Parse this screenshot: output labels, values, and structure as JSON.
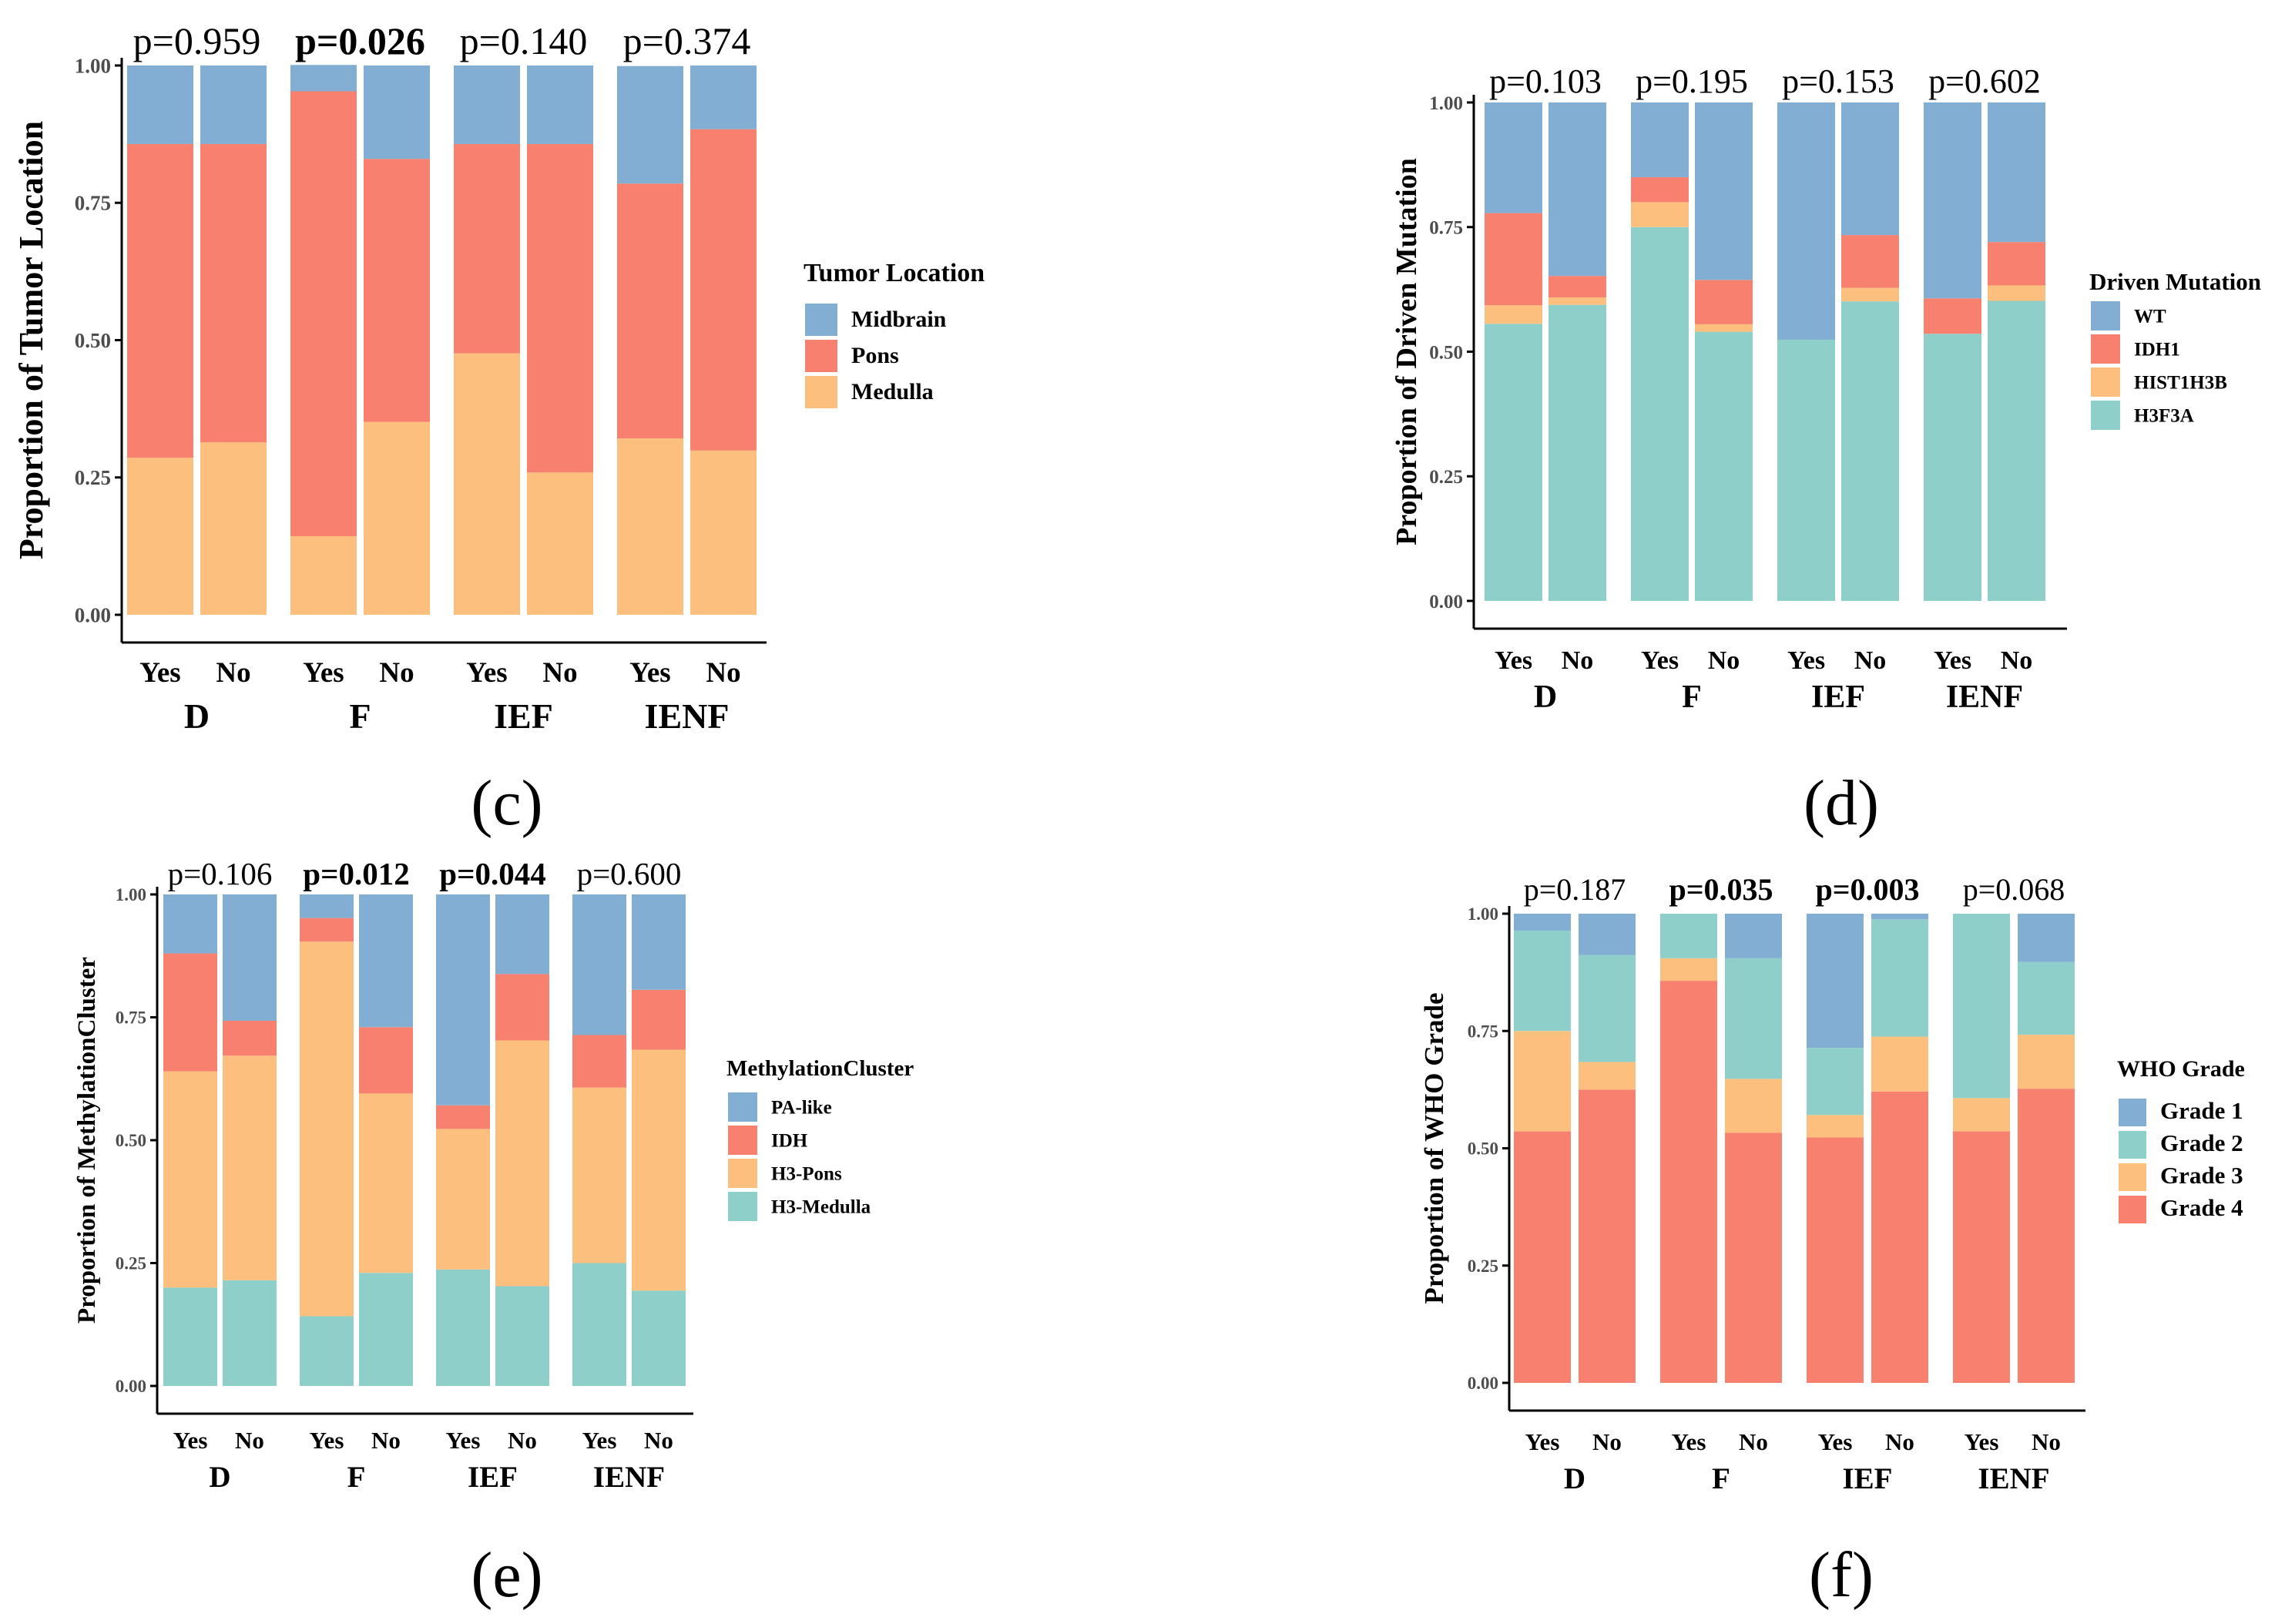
{
  "figure": {
    "panel_labels": [
      "(c)",
      "(d)",
      "(e)",
      "(f)"
    ]
  },
  "chart_data": [
    {
      "type": "bar",
      "stacked": true,
      "panel": "(c)",
      "ylabel": "Proportion of Tumor Location",
      "ylim": [
        0,
        1
      ],
      "yticks": [
        "0.00",
        "0.25",
        "0.50",
        "0.75",
        "1.00"
      ],
      "groups": [
        "D",
        "F",
        "IEF",
        "IENF"
      ],
      "bar_labels": [
        "Yes",
        "No"
      ],
      "p_values": [
        {
          "text": "p=0.959",
          "bold": false
        },
        {
          "text": "p=0.026",
          "bold": true
        },
        {
          "text": "p=0.140",
          "bold": false
        },
        {
          "text": "p=0.374",
          "bold": false
        }
      ],
      "legend_title": "Tumor Location",
      "series": [
        {
          "name": "Midbrain",
          "color": "#82AED3",
          "values": [
            0.143,
            0.143,
            0.048,
            0.17,
            0.143,
            0.143,
            0.214,
            0.116
          ]
        },
        {
          "name": "Pons",
          "color": "#F8806F",
          "values": [
            0.571,
            0.543,
            0.81,
            0.479,
            0.381,
            0.598,
            0.464,
            0.585
          ]
        },
        {
          "name": "Medulla",
          "color": "#FDBF7E",
          "values": [
            0.286,
            0.314,
            0.143,
            0.351,
            0.476,
            0.259,
            0.321,
            0.299
          ]
        }
      ]
    },
    {
      "type": "bar",
      "stacked": true,
      "panel": "(d)",
      "ylabel": "Proportion of Driven Mutation",
      "ylim": [
        0,
        1
      ],
      "yticks": [
        "0.00",
        "0.25",
        "0.50",
        "0.75",
        "1.00"
      ],
      "groups": [
        "D",
        "F",
        "IEF",
        "IENF"
      ],
      "bar_labels": [
        "Yes",
        "No"
      ],
      "p_values": [
        {
          "text": "p=0.103",
          "bold": false
        },
        {
          "text": "p=0.195",
          "bold": false
        },
        {
          "text": "p=0.153",
          "bold": false
        },
        {
          "text": "p=0.602",
          "bold": false
        }
      ],
      "legend_title": "Driven Mutation",
      "series": [
        {
          "name": "WT",
          "color": "#82AED3",
          "values": [
            0.222,
            0.348,
            0.15,
            0.356,
            0.476,
            0.266,
            0.393,
            0.28
          ]
        },
        {
          "name": "IDH1",
          "color": "#F8806F",
          "values": [
            0.185,
            0.043,
            0.05,
            0.089,
            0.0,
            0.106,
            0.071,
            0.087
          ]
        },
        {
          "name": "HIST1H3B",
          "color": "#FDBF7E",
          "values": [
            0.037,
            0.015,
            0.05,
            0.015,
            0.0,
            0.027,
            0.0,
            0.031
          ]
        },
        {
          "name": "H3F3A",
          "color": "#8ECFC9",
          "values": [
            0.556,
            0.594,
            0.75,
            0.54,
            0.524,
            0.601,
            0.536,
            0.602
          ]
        }
      ]
    },
    {
      "type": "bar",
      "stacked": true,
      "panel": "(e)",
      "ylabel": "Proportion of MethylationCluster",
      "ylim": [
        0,
        1
      ],
      "yticks": [
        "0.00",
        "0.25",
        "0.50",
        "0.75",
        "1.00"
      ],
      "groups": [
        "D",
        "F",
        "IEF",
        "IENF"
      ],
      "bar_labels": [
        "Yes",
        "No"
      ],
      "p_values": [
        {
          "text": "p=0.106",
          "bold": false
        },
        {
          "text": "p=0.012",
          "bold": true
        },
        {
          "text": "p=0.044",
          "bold": true
        },
        {
          "text": "p=0.600",
          "bold": false
        }
      ],
      "legend_title": "MethylationCluster",
      "series": [
        {
          "name": "PA-like",
          "color": "#82AED3",
          "values": [
            0.12,
            0.257,
            0.048,
            0.27,
            0.429,
            0.162,
            0.286,
            0.194
          ]
        },
        {
          "name": "IDH",
          "color": "#F8806F",
          "values": [
            0.24,
            0.071,
            0.048,
            0.135,
            0.048,
            0.135,
            0.107,
            0.122
          ]
        },
        {
          "name": "H3-Pons",
          "color": "#FDBF7E",
          "values": [
            0.44,
            0.457,
            0.762,
            0.365,
            0.286,
            0.5,
            0.357,
            0.49
          ]
        },
        {
          "name": "H3-Medulla",
          "color": "#8ECFC9",
          "values": [
            0.2,
            0.215,
            0.142,
            0.23,
            0.237,
            0.203,
            0.25,
            0.194
          ]
        }
      ]
    },
    {
      "type": "bar",
      "stacked": true,
      "panel": "(f)",
      "ylabel": "Proportion of WHO Grade",
      "ylim": [
        0,
        1
      ],
      "yticks": [
        "0.00",
        "0.25",
        "0.50",
        "0.75",
        "1.00"
      ],
      "groups": [
        "D",
        "F",
        "IEF",
        "IENF"
      ],
      "bar_labels": [
        "Yes",
        "No"
      ],
      "p_values": [
        {
          "text": "p=0.187",
          "bold": false
        },
        {
          "text": "p=0.035",
          "bold": true
        },
        {
          "text": "p=0.003",
          "bold": true
        },
        {
          "text": "p=0.068",
          "bold": false
        }
      ],
      "legend_title": "WHO Grade",
      "series": [
        {
          "name": "Grade 1",
          "color": "#82AED3",
          "values": [
            0.036,
            0.088,
            0.0,
            0.095,
            0.286,
            0.012,
            0.0,
            0.103
          ]
        },
        {
          "name": "Grade 2",
          "color": "#8ECFC9",
          "values": [
            0.214,
            0.228,
            0.095,
            0.257,
            0.143,
            0.25,
            0.393,
            0.155
          ]
        },
        {
          "name": "Grade 3",
          "color": "#FDBF7E",
          "values": [
            0.214,
            0.059,
            0.048,
            0.115,
            0.048,
            0.117,
            0.071,
            0.115
          ]
        },
        {
          "name": "Grade 4",
          "color": "#F8806F",
          "values": [
            0.536,
            0.625,
            0.857,
            0.533,
            0.523,
            0.621,
            0.536,
            0.627
          ]
        }
      ]
    }
  ]
}
